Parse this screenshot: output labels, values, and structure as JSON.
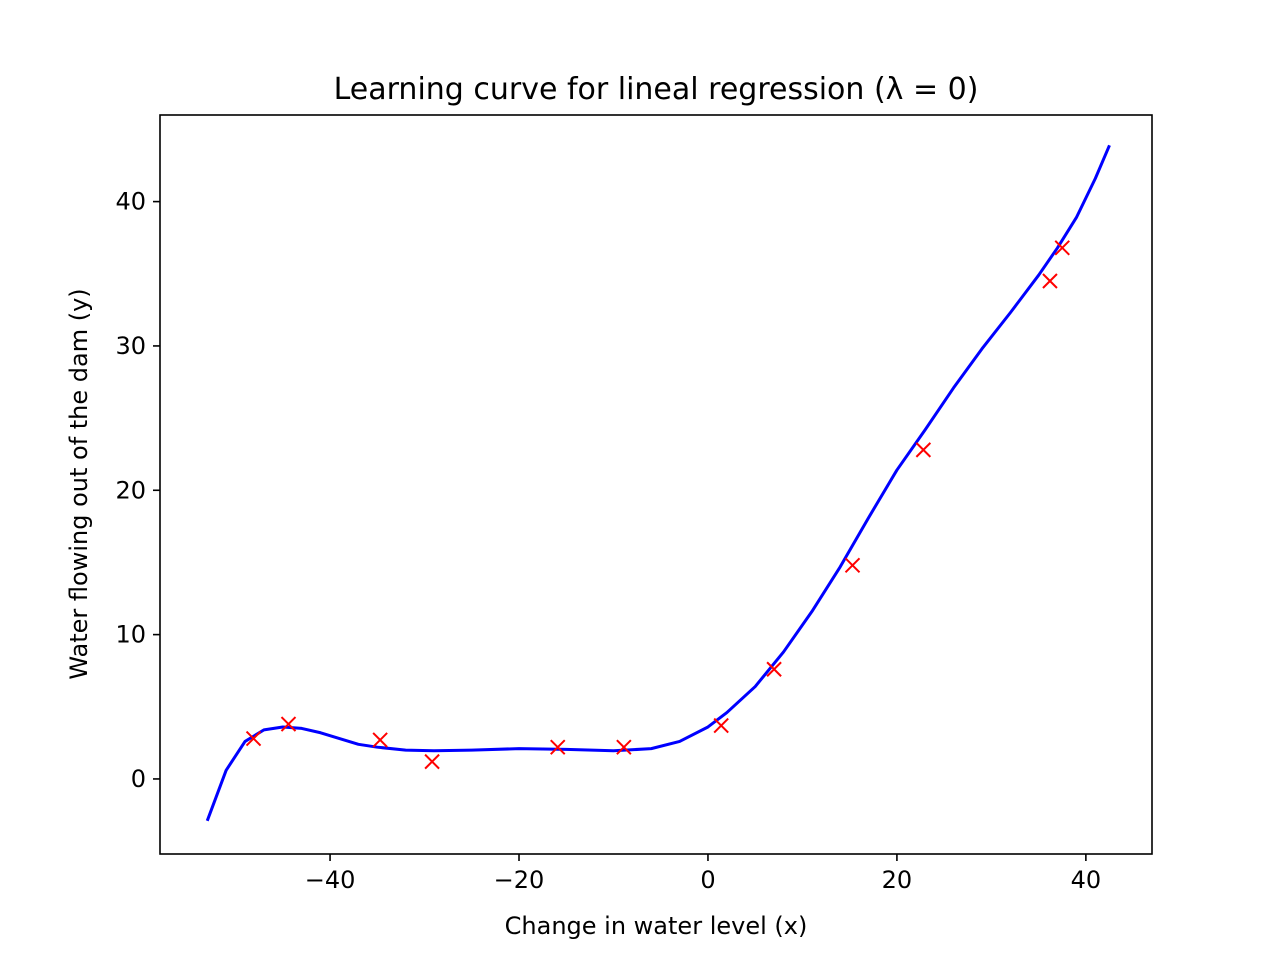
{
  "chart_data": {
    "type": "scatter",
    "title": "Learning curve for lineal regression (λ = 0)",
    "xlabel": "Change in water level (x)",
    "ylabel": "Water flowing out of the dam (y)",
    "xlim": [
      -58.0,
      47.0
    ],
    "ylim": [
      -5.2,
      46.0
    ],
    "xticks": [
      -40,
      -20,
      0,
      20,
      40
    ],
    "xtick_labels": [
      "−40",
      "−20",
      "0",
      "20",
      "40"
    ],
    "yticks": [
      0,
      10,
      20,
      30,
      40
    ],
    "ytick_labels": [
      "0",
      "10",
      "20",
      "30",
      "40"
    ],
    "grid": false,
    "series": [
      {
        "kind": "scatter",
        "marker": "x",
        "color": "#ff0000",
        "x": [
          -48.1,
          -44.4,
          -34.7,
          -29.2,
          -15.9,
          -8.9,
          1.4,
          7.0,
          15.3,
          22.8,
          36.2,
          37.5
        ],
        "y": [
          2.8,
          3.8,
          2.7,
          1.2,
          2.2,
          2.2,
          3.7,
          7.6,
          14.8,
          22.8,
          34.5,
          36.8
        ]
      },
      {
        "kind": "line",
        "color": "#0000ff",
        "x": [
          -53.0,
          -51.0,
          -49.0,
          -47.0,
          -45.0,
          -43.0,
          -41.0,
          -39.0,
          -37.0,
          -35.0,
          -32.0,
          -29.0,
          -25.0,
          -20.0,
          -15.0,
          -10.0,
          -6.0,
          -3.0,
          0.0,
          2.0,
          5.0,
          8.0,
          11.0,
          14.0,
          17.0,
          20.0,
          23.0,
          26.0,
          29.0,
          32.0,
          35.0,
          37.0,
          39.0,
          41.0,
          42.5
        ],
        "y": [
          -2.9,
          0.6,
          2.6,
          3.4,
          3.6,
          3.5,
          3.2,
          2.8,
          2.4,
          2.2,
          2.0,
          1.95,
          2.0,
          2.1,
          2.05,
          1.95,
          2.1,
          2.6,
          3.6,
          4.6,
          6.4,
          8.8,
          11.6,
          14.7,
          18.1,
          21.4,
          24.2,
          27.1,
          29.8,
          32.3,
          34.9,
          36.8,
          38.9,
          41.6,
          43.9
        ]
      }
    ]
  }
}
